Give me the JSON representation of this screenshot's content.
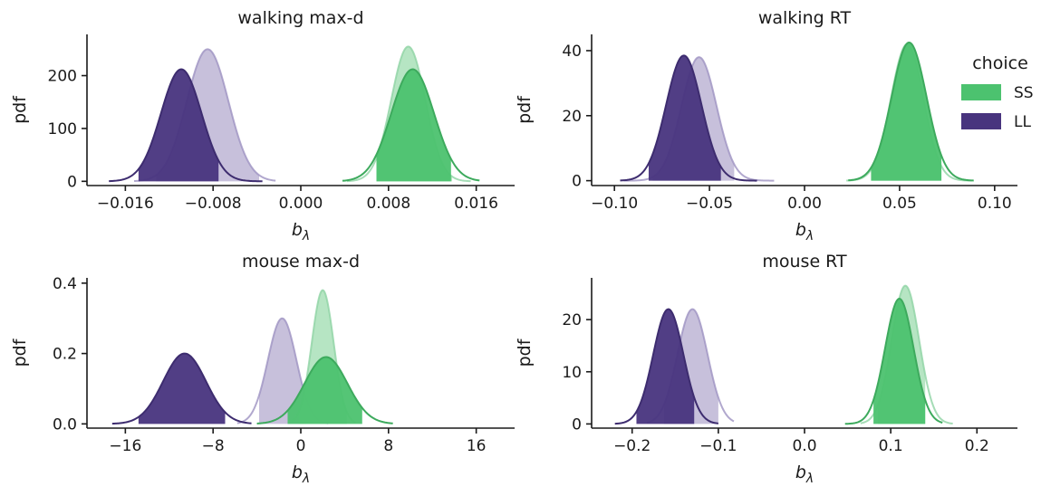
{
  "chart_data": [
    {
      "type": "area",
      "title": "walking max-d",
      "xlabel": "b_λ",
      "ylabel": "pdf",
      "xlim": [
        -0.0195,
        0.0195
      ],
      "ylim": [
        -8,
        278
      ],
      "xticks": [
        -0.016,
        -0.008,
        0.0,
        0.008,
        0.016
      ],
      "xtick_labels": [
        "−0.016",
        "−0.008",
        "0.000",
        "0.008",
        "0.016"
      ],
      "yticks": [
        0,
        100,
        200
      ],
      "ytick_labels": [
        "0",
        "100",
        "200"
      ],
      "series": [
        {
          "choice": "LL",
          "light": true,
          "mu": -0.0085,
          "sd": 0.0019,
          "peak": 250,
          "xrange": [
            -0.0152,
            -0.0023
          ],
          "fill": [
            -0.0132,
            -0.0038
          ]
        },
        {
          "choice": "SS",
          "light": true,
          "mu": 0.0098,
          "sd": 0.00155,
          "peak": 255,
          "xrange": [
            0.0042,
            0.0155
          ],
          "fill": [
            0.0069,
            0.0138
          ]
        },
        {
          "choice": "LL",
          "light": false,
          "mu": -0.0109,
          "sd": 0.00185,
          "peak": 212,
          "xrange": [
            -0.0175,
            -0.0035
          ],
          "fill": [
            -0.0148,
            -0.0075
          ]
        },
        {
          "choice": "SS",
          "light": false,
          "mu": 0.0102,
          "sd": 0.00195,
          "peak": 212,
          "xrange": [
            0.0038,
            0.0163
          ],
          "fill": [
            0.0069,
            0.0137
          ]
        }
      ]
    },
    {
      "type": "area",
      "title": "walking RT",
      "xlabel": "b_λ",
      "ylabel": "pdf",
      "xlim": [
        -0.112,
        0.112
      ],
      "ylim": [
        -1.5,
        45
      ],
      "xticks": [
        -0.1,
        -0.05,
        0.0,
        0.05,
        0.1
      ],
      "xtick_labels": [
        "−0.10",
        "−0.05",
        "0.00",
        "0.05",
        "0.10"
      ],
      "yticks": [
        0,
        20,
        40
      ],
      "ytick_labels": [
        "0",
        "20",
        "40"
      ],
      "series": [
        {
          "choice": "LL",
          "light": true,
          "mu": -0.0555,
          "sd": 0.0092,
          "peak": 38,
          "xrange": [
            -0.095,
            -0.016
          ],
          "fill": [
            -0.08,
            -0.037
          ]
        },
        {
          "choice": "SS",
          "light": true,
          "mu": 0.054,
          "sd": 0.0085,
          "peak": 42,
          "xrange": [
            0.022,
            0.088
          ],
          "fill": [
            0.035,
            0.072
          ]
        },
        {
          "choice": "LL",
          "light": false,
          "mu": -0.0635,
          "sd": 0.0093,
          "peak": 38.5,
          "xrange": [
            -0.097,
            -0.025
          ],
          "fill": [
            -0.082,
            -0.044
          ]
        },
        {
          "choice": "SS",
          "light": false,
          "mu": 0.055,
          "sd": 0.0092,
          "peak": 42.5,
          "xrange": [
            0.023,
            0.089
          ],
          "fill": [
            0.035,
            0.072
          ]
        }
      ]
    },
    {
      "type": "area",
      "title": "mouse max-d",
      "xlabel": "b_λ",
      "ylabel": "pdf",
      "xlim": [
        -19.5,
        19.5
      ],
      "ylim": [
        -0.012,
        0.415
      ],
      "xticks": [
        -16,
        -8,
        0,
        8,
        16
      ],
      "xtick_labels": [
        "−16",
        "−8",
        "0",
        "8",
        "16"
      ],
      "yticks": [
        0.0,
        0.2,
        0.4
      ],
      "ytick_labels": [
        "0.0",
        "0.2",
        "0.4"
      ],
      "series": [
        {
          "choice": "LL",
          "light": true,
          "mu": -1.7,
          "sd": 1.3,
          "peak": 0.3,
          "xrange": [
            -5.8,
            2.5
          ],
          "fill": [
            -3.8,
            0.5
          ]
        },
        {
          "choice": "SS",
          "light": true,
          "mu": 2.0,
          "sd": 1.0,
          "peak": 0.38,
          "xrange": [
            -0.8,
            5.0
          ],
          "fill": [
            -0.2,
            4.2
          ]
        },
        {
          "choice": "LL",
          "light": false,
          "mu": -10.6,
          "sd": 1.95,
          "peak": 0.2,
          "xrange": [
            -17.2,
            -4.5
          ],
          "fill": [
            -14.8,
            -6.9
          ]
        },
        {
          "choice": "SS",
          "light": false,
          "mu": 2.3,
          "sd": 1.95,
          "peak": 0.19,
          "xrange": [
            -4.0,
            8.4
          ],
          "fill": [
            -1.2,
            5.6
          ]
        }
      ]
    },
    {
      "type": "area",
      "title": "mouse RT",
      "xlabel": "b_λ",
      "ylabel": "pdf",
      "xlim": [
        -0.247,
        0.247
      ],
      "ylim": [
        -0.8,
        28
      ],
      "xticks": [
        -0.2,
        -0.1,
        0.0,
        0.1,
        0.2
      ],
      "xtick_labels": [
        "−0.2",
        "−0.1",
        "0.0",
        "0.1",
        "0.2"
      ],
      "yticks": [
        0,
        10,
        20
      ],
      "ytick_labels": [
        "0",
        "10",
        "20"
      ],
      "series": [
        {
          "choice": "LL",
          "light": true,
          "mu": -0.13,
          "sd": 0.0175,
          "peak": 22,
          "xrange": [
            -0.183,
            -0.082
          ],
          "fill": [
            -0.163,
            -0.1
          ]
        },
        {
          "choice": "SS",
          "light": true,
          "mu": 0.117,
          "sd": 0.016,
          "peak": 26.5,
          "xrange": [
            0.065,
            0.172
          ],
          "fill": [
            0.085,
            0.14
          ]
        },
        {
          "choice": "LL",
          "light": false,
          "mu": -0.158,
          "sd": 0.0175,
          "peak": 22,
          "xrange": [
            -0.22,
            -0.1
          ],
          "fill": [
            -0.195,
            -0.128
          ]
        },
        {
          "choice": "SS",
          "light": false,
          "mu": 0.11,
          "sd": 0.0165,
          "peak": 24,
          "xrange": [
            0.047,
            0.16
          ],
          "fill": [
            0.08,
            0.14
          ]
        }
      ]
    }
  ],
  "legend": {
    "title": "choice",
    "items": [
      {
        "label": "SS",
        "color": "#4cc26f"
      },
      {
        "label": "LL",
        "color": "#48347e"
      }
    ]
  },
  "colors": {
    "SS": "#4cc26f",
    "LL": "#48347e",
    "SS_light": "#a9e0b9",
    "LL_light": "#bdb5d5",
    "SS_line": "#3daa5d",
    "LL_line": "#3d2c6f",
    "SS_line_light": "#8fd3a4",
    "LL_line_light": "#9e92c2"
  }
}
